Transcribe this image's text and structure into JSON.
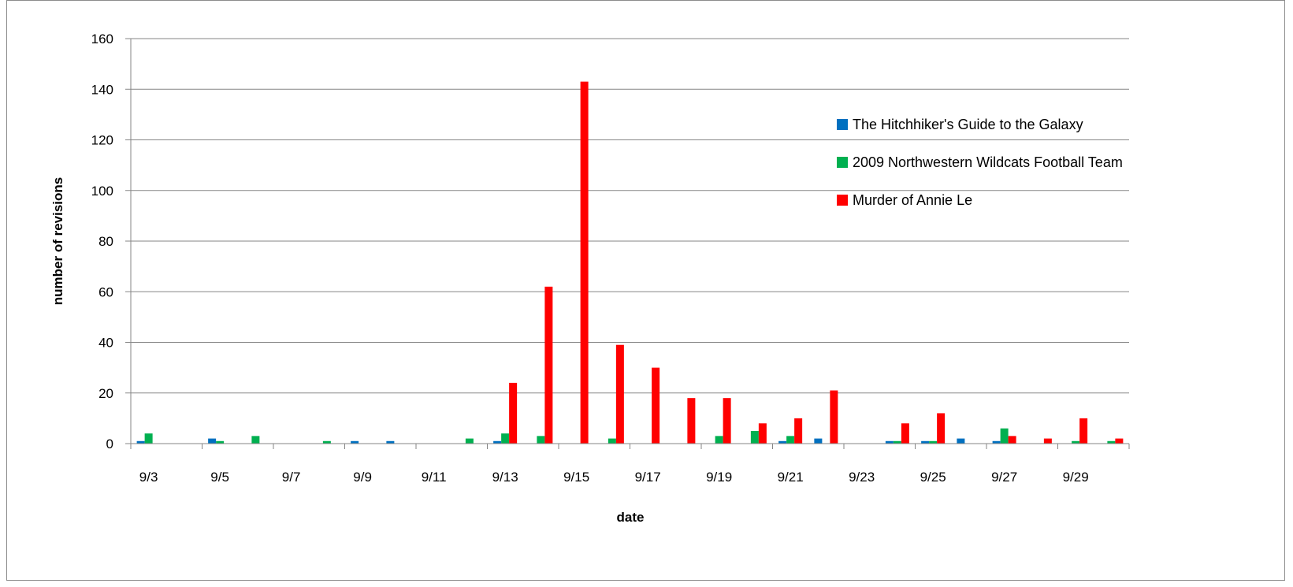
{
  "chart_data": {
    "type": "bar",
    "xlabel": "date",
    "ylabel": "number of revisions",
    "ylim": [
      0,
      160
    ],
    "yticks": [
      0,
      20,
      40,
      60,
      80,
      100,
      120,
      140,
      160
    ],
    "grid": "horizontal",
    "legend_position": "right",
    "categories": [
      "9/3",
      "9/4",
      "9/5",
      "9/6",
      "9/7",
      "9/8",
      "9/9",
      "9/10",
      "9/11",
      "9/12",
      "9/13",
      "9/14",
      "9/15",
      "9/16",
      "9/17",
      "9/18",
      "9/19",
      "9/20",
      "9/21",
      "9/22",
      "9/23",
      "9/24",
      "9/25",
      "9/26",
      "9/27",
      "9/28",
      "9/29",
      "9/30"
    ],
    "x_tick_labels": [
      "9/3",
      "9/5",
      "9/7",
      "9/9",
      "9/11",
      "9/13",
      "9/15",
      "9/17",
      "9/19",
      "9/21",
      "9/23",
      "9/25",
      "9/27",
      "9/29"
    ],
    "series": [
      {
        "name": "The Hitchhiker's Guide to the Galaxy",
        "color": "#0070c0",
        "values": [
          1,
          0,
          2,
          0,
          0,
          0,
          1,
          1,
          0,
          0,
          1,
          0,
          0,
          0,
          0,
          0,
          0,
          0,
          1,
          2,
          0,
          1,
          1,
          2,
          1,
          0,
          0,
          0
        ]
      },
      {
        "name": "2009 Northwestern Wildcats Football Team",
        "color": "#00b050",
        "values": [
          4,
          0,
          1,
          3,
          0,
          1,
          0,
          0,
          0,
          2,
          4,
          3,
          0,
          2,
          0,
          0,
          3,
          5,
          3,
          0,
          0,
          1,
          1,
          0,
          6,
          0,
          1,
          1
        ]
      },
      {
        "name": "Murder of Annie Le",
        "color": "#ff0000",
        "values": [
          0,
          0,
          0,
          0,
          0,
          0,
          0,
          0,
          0,
          0,
          24,
          62,
          143,
          39,
          30,
          18,
          18,
          8,
          10,
          21,
          0,
          8,
          12,
          0,
          3,
          2,
          10,
          2
        ]
      }
    ]
  }
}
